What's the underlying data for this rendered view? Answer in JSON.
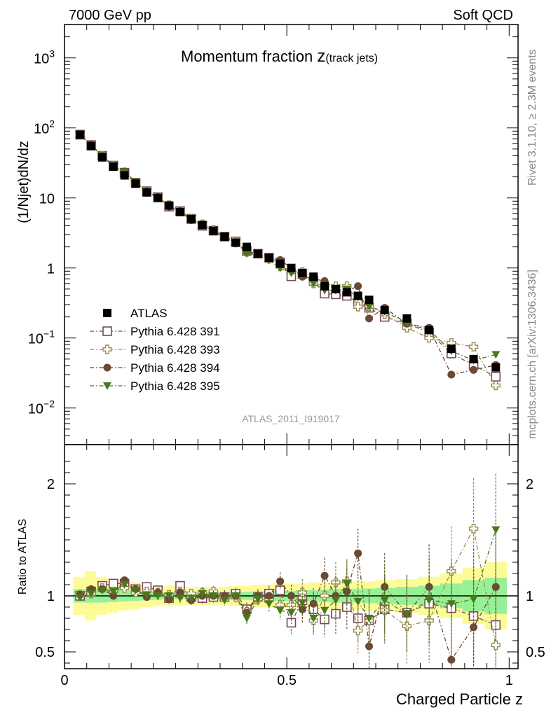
{
  "header": {
    "left": "7000 GeV pp",
    "right": "Soft QCD"
  },
  "side_labels": {
    "rivet": "Rivet 3.1.10, ≥ 2.3M events",
    "mcplots": "mcplots.cern.ch [arXiv:1306.3436]"
  },
  "analysis_tag": "ATLAS_2011_I919017",
  "chart_data": [
    {
      "type": "scatter",
      "panel": "main",
      "title": "Momentum fraction",
      "title_sub": "z",
      "title_sub2": "(track jets)",
      "ylabel": "(1/Njet)dN/dz",
      "xlabel": "",
      "xlim": [
        0,
        1.02
      ],
      "ylim": [
        0.003,
        3000
      ],
      "yscale": "log",
      "y_ticks": [
        {
          "v": 1000,
          "base": "10",
          "exp": "3"
        },
        {
          "v": 100,
          "base": "10",
          "exp": "2"
        },
        {
          "v": 10,
          "base": "10",
          "exp": ""
        },
        {
          "v": 1,
          "base": "1",
          "exp": ""
        },
        {
          "v": 0.1,
          "base": "10",
          "exp": "−1"
        },
        {
          "v": 0.01,
          "base": "10",
          "exp": "−2"
        }
      ],
      "x": [
        0.035,
        0.06,
        0.085,
        0.11,
        0.135,
        0.16,
        0.185,
        0.21,
        0.235,
        0.26,
        0.285,
        0.31,
        0.335,
        0.36,
        0.385,
        0.41,
        0.435,
        0.46,
        0.485,
        0.51,
        0.535,
        0.56,
        0.585,
        0.61,
        0.635,
        0.66,
        0.685,
        0.72,
        0.77,
        0.82,
        0.87,
        0.92,
        0.97
      ],
      "series": [
        {
          "name": "ATLAS",
          "marker": "square-filled",
          "color": "#000000",
          "values": [
            80,
            55,
            38,
            28,
            21,
            16,
            12,
            10,
            7.8,
            6.3,
            5.0,
            4.1,
            3.4,
            2.8,
            2.3,
            2.0,
            1.6,
            1.4,
            1.15,
            1.0,
            0.85,
            0.75,
            0.55,
            0.5,
            0.45,
            0.4,
            0.35,
            0.25,
            0.19,
            0.13,
            0.07,
            0.05,
            0.038
          ]
        },
        {
          "name": "Pythia 6.428 391",
          "marker": "square-open",
          "color": "#7a4a5a",
          "values": [
            80,
            57,
            40,
            29,
            23,
            16.5,
            12.5,
            10.3,
            7.5,
            6.5,
            5.0,
            4.0,
            3.4,
            2.8,
            2.4,
            1.75,
            1.6,
            1.4,
            1.2,
            0.76,
            0.82,
            0.65,
            0.43,
            0.42,
            0.4,
            0.32,
            0.27,
            0.2,
            0.16,
            0.12,
            0.06,
            0.041,
            0.028
          ]
        },
        {
          "name": "Pythia 6.428 393",
          "marker": "cross-open",
          "color": "#9a8a50",
          "values": [
            81,
            56,
            40,
            29,
            22,
            16.3,
            12.3,
            10.2,
            7.9,
            6.5,
            5.1,
            4.2,
            3.5,
            2.8,
            2.3,
            1.7,
            1.6,
            1.35,
            1.05,
            0.92,
            0.88,
            0.6,
            0.55,
            0.55,
            0.55,
            0.28,
            0.28,
            0.22,
            0.14,
            0.1,
            0.085,
            0.075,
            0.021
          ]
        },
        {
          "name": "Pythia 6.428 394",
          "marker": "circle-filled",
          "color": "#6b4a35",
          "values": [
            81,
            58,
            40,
            28,
            24,
            17,
            12.5,
            10.3,
            7.5,
            6.5,
            4.8,
            4.1,
            3.4,
            2.8,
            2.3,
            1.7,
            1.6,
            1.4,
            1.3,
            1.0,
            0.75,
            0.7,
            0.65,
            0.5,
            0.47,
            0.55,
            0.19,
            0.27,
            0.16,
            0.14,
            0.03,
            0.035,
            0.041
          ]
        },
        {
          "name": "Pythia 6.428 395",
          "marker": "triangle-down-filled",
          "color": "#4a7a18",
          "values": [
            79,
            56,
            40,
            29,
            23,
            16.8,
            12.1,
            10.0,
            7.8,
            6.2,
            4.9,
            4.2,
            3.4,
            2.7,
            2.3,
            1.6,
            1.55,
            1.3,
            1.0,
            0.85,
            0.8,
            0.6,
            0.48,
            0.48,
            0.5,
            0.38,
            0.28,
            0.24,
            0.16,
            0.13,
            0.065,
            0.048,
            0.058
          ]
        }
      ],
      "legend_position": "lower-left"
    },
    {
      "type": "scatter",
      "panel": "ratio",
      "ylabel": "Ratio to ATLAS",
      "xlabel": "Charged Particle z",
      "xlim": [
        0,
        1.02
      ],
      "ylim": [
        0.35,
        2.35
      ],
      "y_ticks": [
        {
          "v": 2,
          "label": "2"
        },
        {
          "v": 1,
          "label": "1"
        },
        {
          "v": 0.5,
          "label": "0.5"
        }
      ],
      "x_ticks": [
        {
          "v": 0,
          "label": "0"
        },
        {
          "v": 0.5,
          "label": "0.5"
        },
        {
          "v": 1,
          "label": "1"
        }
      ],
      "x": [
        0.035,
        0.06,
        0.085,
        0.11,
        0.135,
        0.16,
        0.185,
        0.21,
        0.235,
        0.26,
        0.285,
        0.31,
        0.335,
        0.36,
        0.385,
        0.41,
        0.435,
        0.46,
        0.485,
        0.51,
        0.535,
        0.56,
        0.585,
        0.61,
        0.635,
        0.66,
        0.685,
        0.72,
        0.77,
        0.82,
        0.87,
        0.92,
        0.97
      ],
      "bands": {
        "bin_edges": [
          0.02,
          0.045,
          0.07,
          0.095,
          0.12,
          0.145,
          0.17,
          0.195,
          0.22,
          0.245,
          0.27,
          0.295,
          0.32,
          0.345,
          0.37,
          0.395,
          0.42,
          0.445,
          0.47,
          0.495,
          0.52,
          0.545,
          0.57,
          0.595,
          0.62,
          0.645,
          0.67,
          0.7,
          0.745,
          0.795,
          0.845,
          0.895,
          0.945,
          0.995
        ],
        "stat_half_width": [
          0.06,
          0.06,
          0.06,
          0.055,
          0.05,
          0.045,
          0.04,
          0.035,
          0.03,
          0.03,
          0.03,
          0.03,
          0.03,
          0.03,
          0.035,
          0.035,
          0.04,
          0.04,
          0.045,
          0.045,
          0.05,
          0.05,
          0.055,
          0.06,
          0.06,
          0.06,
          0.065,
          0.07,
          0.08,
          0.09,
          0.11,
          0.14,
          0.16
        ],
        "syst_half_width": [
          0.17,
          0.22,
          0.17,
          0.15,
          0.13,
          0.12,
          0.1,
          0.09,
          0.09,
          0.09,
          0.08,
          0.08,
          0.08,
          0.08,
          0.09,
          0.09,
          0.1,
          0.1,
          0.11,
          0.11,
          0.11,
          0.12,
          0.12,
          0.12,
          0.13,
          0.13,
          0.13,
          0.14,
          0.15,
          0.17,
          0.2,
          0.25,
          0.3
        ],
        "stat_color": "#96f096",
        "syst_color": "#fcfc96"
      },
      "series": [
        {
          "name": "Pythia 6.428 391",
          "marker": "square-open",
          "color": "#7a4a5a",
          "values": [
            1.0,
            1.04,
            1.09,
            1.11,
            1.11,
            1.06,
            1.08,
            1.05,
            0.98,
            1.09,
            0.99,
            0.98,
            0.99,
            0.99,
            1.02,
            0.88,
            0.99,
            1.02,
            1.05,
            0.76,
            0.96,
            0.88,
            0.79,
            0.84,
            0.9,
            0.8,
            0.78,
            0.88,
            0.85,
            0.93,
            0.89,
            0.82,
            0.74
          ],
          "errors": [
            0.02,
            0.03,
            0.03,
            0.03,
            0.03,
            0.03,
            0.03,
            0.04,
            0.04,
            0.04,
            0.04,
            0.05,
            0.05,
            0.05,
            0.05,
            0.06,
            0.06,
            0.07,
            0.08,
            0.1,
            0.12,
            0.14,
            0.16,
            0.18,
            0.2,
            0.22,
            0.26,
            0.3,
            0.34,
            0.38,
            0.4,
            0.45,
            0.5
          ]
        },
        {
          "name": "Pythia 6.428 393",
          "marker": "cross-open",
          "color": "#9a8a50",
          "values": [
            1.01,
            1.02,
            1.07,
            1.04,
            1.07,
            1.03,
            1.04,
            1.03,
            1.01,
            1.04,
            1.02,
            1.03,
            1.04,
            0.99,
            0.99,
            0.86,
            0.97,
            0.96,
            0.92,
            0.92,
            1.03,
            0.78,
            1.0,
            1.12,
            1.13,
            0.69,
            0.78,
            0.87,
            0.73,
            0.78,
            1.22,
            1.6,
            0.56
          ],
          "errors": [
            0.02,
            0.03,
            0.03,
            0.03,
            0.03,
            0.03,
            0.03,
            0.04,
            0.04,
            0.04,
            0.04,
            0.05,
            0.05,
            0.05,
            0.05,
            0.06,
            0.06,
            0.07,
            0.08,
            0.1,
            0.12,
            0.14,
            0.16,
            0.18,
            0.2,
            0.22,
            0.26,
            0.3,
            0.34,
            0.38,
            0.4,
            0.45,
            0.5
          ]
        },
        {
          "name": "Pythia 6.428 394",
          "marker": "circle-filled",
          "color": "#6b4a35",
          "values": [
            1.01,
            1.06,
            1.06,
            1.0,
            1.14,
            1.06,
            0.99,
            1.03,
            0.97,
            1.03,
            0.96,
            1.0,
            1.0,
            1.0,
            1.0,
            0.85,
            1.0,
            1.0,
            1.13,
            1.0,
            0.88,
            0.93,
            1.18,
            1.0,
            1.04,
            1.38,
            0.55,
            1.08,
            0.84,
            1.08,
            0.43,
            0.72,
            1.08
          ],
          "errors": [
            0.02,
            0.03,
            0.03,
            0.03,
            0.03,
            0.03,
            0.03,
            0.04,
            0.04,
            0.04,
            0.04,
            0.05,
            0.05,
            0.05,
            0.05,
            0.06,
            0.06,
            0.07,
            0.08,
            0.1,
            0.12,
            0.14,
            0.16,
            0.18,
            0.2,
            0.22,
            0.26,
            0.3,
            0.34,
            0.38,
            0.4,
            0.45,
            0.5
          ]
        },
        {
          "name": "Pythia 6.428 395",
          "marker": "triangle-down-filled",
          "color": "#4a7a18",
          "values": [
            0.99,
            1.02,
            1.05,
            1.04,
            1.1,
            1.05,
            1.01,
            1.0,
            1.0,
            0.98,
            0.98,
            1.02,
            1.0,
            0.96,
            1.0,
            0.8,
            0.97,
            0.93,
            0.87,
            0.85,
            0.94,
            0.8,
            0.87,
            0.96,
            1.11,
            0.95,
            0.8,
            0.96,
            0.84,
            0.96,
            0.93,
            0.97,
            1.59
          ],
          "errors": [
            0.02,
            0.03,
            0.03,
            0.03,
            0.03,
            0.03,
            0.03,
            0.04,
            0.04,
            0.04,
            0.04,
            0.05,
            0.05,
            0.05,
            0.05,
            0.06,
            0.06,
            0.07,
            0.08,
            0.1,
            0.12,
            0.14,
            0.16,
            0.18,
            0.2,
            0.22,
            0.26,
            0.3,
            0.34,
            0.38,
            0.4,
            0.45,
            0.5
          ]
        }
      ]
    }
  ]
}
